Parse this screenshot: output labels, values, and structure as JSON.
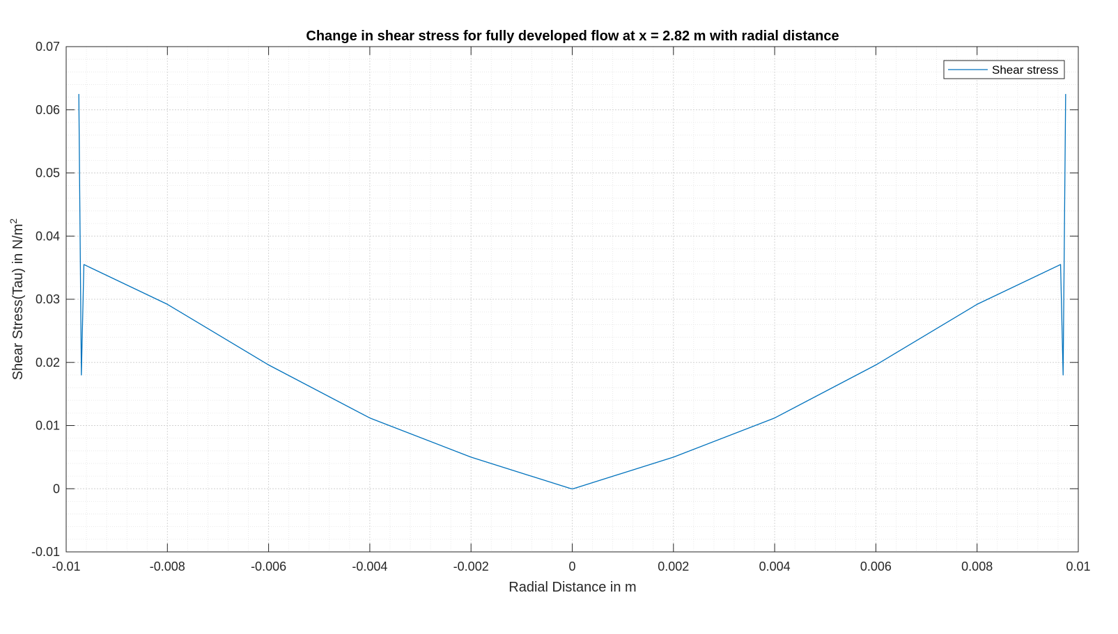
{
  "chart_data": {
    "type": "line",
    "title": "Change in shear stress for fully developed flow at x = 2.82 m with radial distance",
    "xlabel": "Radial Distance in m",
    "ylabel": "Shear Stress(Tau) in N/m",
    "ylabel_superscript": "2",
    "xlim": [
      -0.01,
      0.01
    ],
    "ylim": [
      -0.01,
      0.07
    ],
    "xticks": [
      -0.01,
      -0.008,
      -0.006,
      -0.004,
      -0.002,
      0,
      0.002,
      0.004,
      0.006,
      0.008,
      0.01
    ],
    "xtick_labels": [
      "-0.01",
      "-0.008",
      "-0.006",
      "-0.004",
      "-0.002",
      "0",
      "0.002",
      "0.004",
      "0.006",
      "0.008",
      "0.01"
    ],
    "yticks": [
      -0.01,
      0,
      0.01,
      0.02,
      0.03,
      0.04,
      0.05,
      0.06,
      0.07
    ],
    "ytick_labels": [
      "-0.01",
      "0",
      "0.01",
      "0.02",
      "0.03",
      "0.04",
      "0.05",
      "0.06",
      "0.07"
    ],
    "grid": "on (major and minor)",
    "legend_position": "top-right",
    "series": [
      {
        "name": "Shear stress",
        "color": "#0072BD",
        "x": [
          -0.00975,
          -0.0097,
          -0.00965,
          -0.008,
          -0.006,
          -0.004,
          -0.002,
          -2e-05,
          2e-05,
          0.002,
          0.004,
          0.006,
          0.008,
          0.00965,
          0.0097,
          0.00975
        ],
        "y": [
          0.0625,
          0.018,
          0.0355,
          0.0292,
          0.0196,
          0.0112,
          0.005,
          0.0,
          0.0,
          0.005,
          0.0112,
          0.0196,
          0.0292,
          0.0355,
          0.018,
          0.0625
        ]
      }
    ]
  }
}
